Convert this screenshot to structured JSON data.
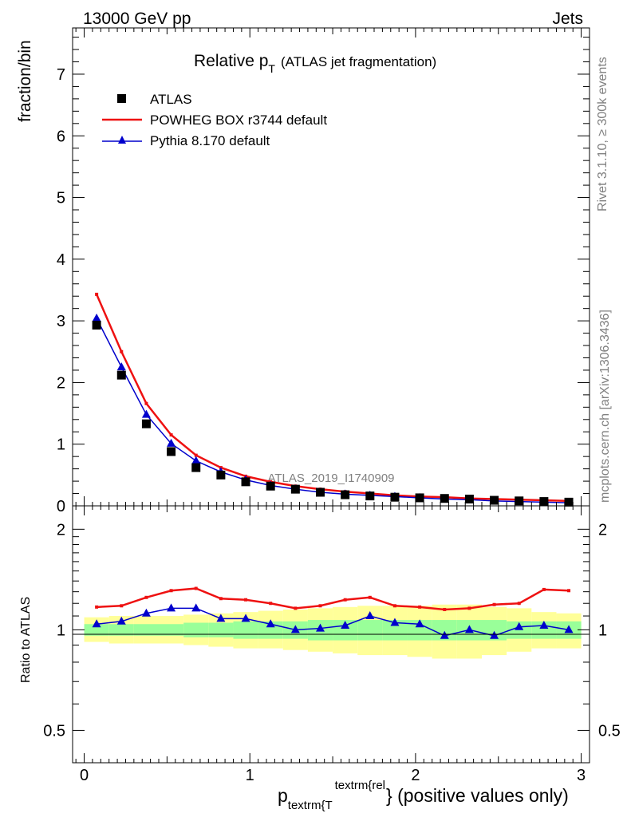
{
  "header": {
    "left": "13000 GeV pp",
    "right": "Jets"
  },
  "side": {
    "rivet": "Rivet 3.1.10, ≥ 300k events",
    "mcplots": "mcplots.cern.ch [arXiv:1306.3436]"
  },
  "colors": {
    "atlas": "#000000",
    "powheg": "#ee1111",
    "pythia": "#0000cc",
    "band_inner": "#99ff99",
    "band_outer": "#ffff99"
  },
  "chart_data": [
    {
      "type": "line",
      "title_main": "Relative p",
      "title_sub": "T",
      "title_extra": "(ATLAS jet fragmentation)",
      "ylabel": "fraction/bin",
      "xlabel_p": "p",
      "xlabel_sub": "textrm{T",
      "xlabel_sup": "textrm{rel",
      "xlabel_rest": "} (positive values only)",
      "watermark": "ATLAS_2019_I1740909",
      "xlim": [
        -0.07,
        3.05
      ],
      "ylim": [
        0,
        7.75
      ],
      "x_ticks": [
        0,
        1,
        2,
        3
      ],
      "y_ticks": [
        0,
        1,
        2,
        3,
        4,
        5,
        6,
        7
      ],
      "x": [
        0.075,
        0.225,
        0.375,
        0.525,
        0.675,
        0.825,
        0.975,
        1.125,
        1.275,
        1.425,
        1.575,
        1.725,
        1.875,
        2.025,
        2.175,
        2.325,
        2.475,
        2.625,
        2.775,
        2.925
      ],
      "legend": [
        "ATLAS",
        "POWHEG BOX r3744 default",
        "Pythia 8.170 default"
      ],
      "series": [
        {
          "name": "ATLAS",
          "values": [
            2.93,
            2.12,
            1.33,
            0.88,
            0.62,
            0.5,
            0.39,
            0.32,
            0.27,
            0.22,
            0.18,
            0.16,
            0.14,
            0.13,
            0.12,
            0.11,
            0.09,
            0.08,
            0.07,
            0.06
          ]
        },
        {
          "name": "POWHEG BOX r3744 default",
          "values": [
            3.43,
            2.5,
            1.66,
            1.15,
            0.82,
            0.62,
            0.48,
            0.39,
            0.32,
            0.27,
            0.23,
            0.2,
            0.17,
            0.15,
            0.14,
            0.12,
            0.11,
            0.1,
            0.09,
            0.08
          ]
        },
        {
          "name": "Pythia 8.170 default",
          "values": [
            3.04,
            2.25,
            1.48,
            1.01,
            0.73,
            0.55,
            0.42,
            0.33,
            0.27,
            0.22,
            0.19,
            0.17,
            0.15,
            0.13,
            0.11,
            0.1,
            0.08,
            0.07,
            0.06,
            0.05
          ]
        }
      ]
    },
    {
      "type": "line",
      "ylabel": "Ratio to ATLAS",
      "ylim": [
        0.4,
        2.35
      ],
      "y_scale": "log",
      "y_ticks": [
        0.5,
        1,
        2
      ],
      "y_tick_labels": [
        "0.5",
        "1",
        "2"
      ],
      "x": [
        0.075,
        0.225,
        0.375,
        0.525,
        0.675,
        0.825,
        0.975,
        1.125,
        1.275,
        1.425,
        1.575,
        1.725,
        1.875,
        2.025,
        2.175,
        2.325,
        2.475,
        2.625,
        2.775,
        2.925
      ],
      "series": [
        {
          "name": "POWHEG BOX r3744 default",
          "values": [
            1.17,
            1.18,
            1.25,
            1.31,
            1.33,
            1.24,
            1.23,
            1.2,
            1.16,
            1.18,
            1.23,
            1.25,
            1.18,
            1.17,
            1.15,
            1.16,
            1.19,
            1.2,
            1.32,
            1.31
          ]
        },
        {
          "name": "Pythia 8.170 default",
          "values": [
            1.04,
            1.06,
            1.12,
            1.16,
            1.16,
            1.08,
            1.08,
            1.04,
            1.0,
            1.01,
            1.03,
            1.1,
            1.05,
            1.04,
            0.96,
            1.0,
            0.96,
            1.02,
            1.03,
            1.0
          ]
        }
      ],
      "band_inner": {
        "lo": [
          0.96,
          0.96,
          0.96,
          0.96,
          0.95,
          0.95,
          0.94,
          0.94,
          0.94,
          0.93,
          0.93,
          0.93,
          0.93,
          0.93,
          0.93,
          0.93,
          0.93,
          0.94,
          0.94,
          0.94
        ],
        "hi": [
          1.04,
          1.04,
          1.04,
          1.04,
          1.05,
          1.05,
          1.06,
          1.06,
          1.06,
          1.07,
          1.07,
          1.07,
          1.07,
          1.07,
          1.07,
          1.07,
          1.07,
          1.06,
          1.06,
          1.06
        ]
      },
      "band_outer": {
        "lo": [
          0.92,
          0.91,
          0.91,
          0.91,
          0.9,
          0.89,
          0.88,
          0.88,
          0.87,
          0.86,
          0.85,
          0.84,
          0.84,
          0.83,
          0.82,
          0.82,
          0.84,
          0.86,
          0.88,
          0.88
        ],
        "hi": [
          1.09,
          1.1,
          1.1,
          1.1,
          1.11,
          1.12,
          1.13,
          1.14,
          1.15,
          1.16,
          1.17,
          1.18,
          1.18,
          1.18,
          1.19,
          1.19,
          1.17,
          1.16,
          1.13,
          1.12
        ]
      }
    }
  ]
}
